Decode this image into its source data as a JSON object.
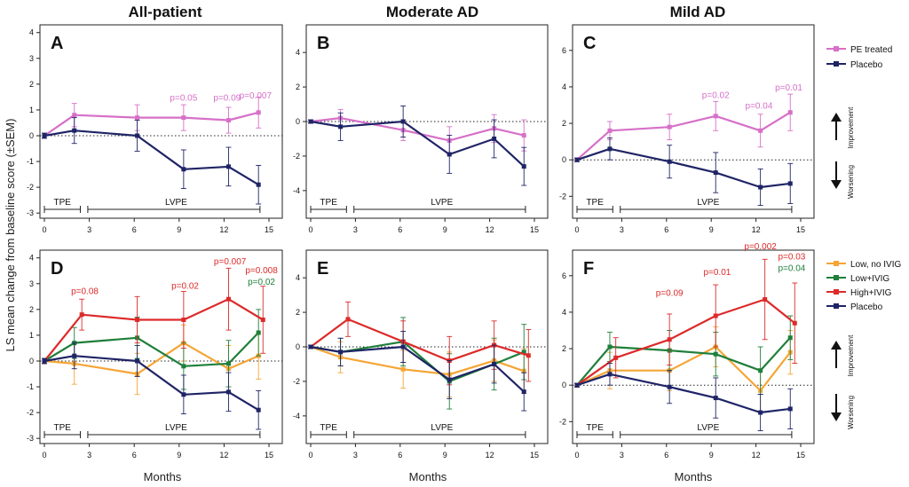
{
  "figure": {
    "column_titles": [
      "All-patient",
      "Moderate AD",
      "Mild AD"
    ],
    "ylabel": "LS mean change from baseline score (±SEM)",
    "xlabel": "Months",
    "periods": [
      "TPE",
      "LVPE"
    ],
    "improvement_label": "Improvement",
    "worsening_label": "Worsening"
  },
  "legends": {
    "top": [
      {
        "name": "PE treated",
        "color": "#d670c8"
      },
      {
        "name": "Placebo",
        "color": "#1f2466"
      }
    ],
    "bottom": [
      {
        "name": "Low, no IVIG",
        "color": "#f5a536"
      },
      {
        "name": "Low+IVIG",
        "color": "#1f7f3a"
      },
      {
        "name": "High+IVIG",
        "color": "#dd2a2a"
      },
      {
        "name": "Placebo",
        "color": "#1f2466"
      }
    ]
  },
  "chart_data": [
    {
      "panel": "A",
      "type": "line",
      "xticks": [
        "0",
        "3",
        "6",
        "9",
        "12",
        "15"
      ],
      "xlim": [
        0,
        15
      ],
      "yticks": [
        "-3",
        "-2",
        "-1",
        "0",
        "1",
        "2",
        "3",
        "4"
      ],
      "ylim": [
        -3.2,
        4.3
      ],
      "series": [
        {
          "name": "PE treated",
          "color": "#d670c8",
          "points": [
            [
              0,
              0,
              0.1
            ],
            [
              2,
              0.8,
              0.45
            ],
            [
              6.2,
              0.7,
              0.5
            ],
            [
              9.3,
              0.7,
              0.5
            ],
            [
              12.3,
              0.6,
              0.5
            ],
            [
              14.3,
              0.9,
              0.6
            ]
          ]
        },
        {
          "name": "Placebo",
          "color": "#1f2466",
          "points": [
            [
              0,
              0,
              0.1
            ],
            [
              2,
              0.2,
              0.5
            ],
            [
              6.2,
              0,
              0.6
            ],
            [
              9.3,
              -1.3,
              0.75
            ],
            [
              12.3,
              -1.2,
              0.75
            ],
            [
              14.3,
              -1.9,
              0.75
            ]
          ]
        }
      ],
      "annotations": [
        {
          "text": "p=0.05",
          "x": 9.3,
          "y": 1.35,
          "color": "#d670c8"
        },
        {
          "text": "p=0.09",
          "x": 12.2,
          "y": 1.35,
          "color": "#d670c8"
        },
        {
          "text": "p=0.007",
          "x": 14.1,
          "y": 1.45,
          "color": "#d670c8"
        }
      ]
    },
    {
      "panel": "B",
      "type": "line",
      "xticks": [
        "0",
        "3",
        "6",
        "9",
        "12",
        "15"
      ],
      "xlim": [
        0,
        15
      ],
      "yticks": [
        "-4",
        "-2",
        "0",
        "2",
        "4"
      ],
      "ylim": [
        -5.6,
        5.6
      ],
      "series": [
        {
          "name": "PE treated",
          "color": "#d670c8",
          "points": [
            [
              0,
              0,
              0.1
            ],
            [
              2,
              0.2,
              0.5
            ],
            [
              6.2,
              -0.5,
              0.6
            ],
            [
              9.3,
              -1.1,
              0.8
            ],
            [
              12.3,
              -0.4,
              0.8
            ],
            [
              14.3,
              -0.8,
              0.9
            ]
          ]
        },
        {
          "name": "Placebo",
          "color": "#1f2466",
          "points": [
            [
              0,
              0,
              0.1
            ],
            [
              2,
              -0.3,
              0.8
            ],
            [
              6.2,
              0,
              0.9
            ],
            [
              9.3,
              -1.9,
              1.1
            ],
            [
              12.3,
              -1,
              1.1
            ],
            [
              14.3,
              -2.6,
              1.1
            ]
          ]
        }
      ],
      "annotations": []
    },
    {
      "panel": "C",
      "type": "line",
      "xticks": [
        "0",
        "3",
        "6",
        "9",
        "12",
        "15"
      ],
      "xlim": [
        0,
        15
      ],
      "yticks": [
        "-2",
        "0",
        "2",
        "4",
        "6"
      ],
      "ylim": [
        -3.2,
        7.4
      ],
      "series": [
        {
          "name": "PE treated",
          "color": "#d670c8",
          "points": [
            [
              0,
              0,
              0.1
            ],
            [
              2.2,
              1.6,
              0.5
            ],
            [
              6.2,
              1.8,
              0.7
            ],
            [
              9.3,
              2.4,
              0.8
            ],
            [
              12.3,
              1.6,
              0.9
            ],
            [
              14.3,
              2.6,
              1
            ]
          ]
        },
        {
          "name": "Placebo",
          "color": "#1f2466",
          "points": [
            [
              0,
              0,
              0.1
            ],
            [
              2.2,
              0.6,
              0.6
            ],
            [
              6.2,
              -0.1,
              0.9
            ],
            [
              9.3,
              -0.7,
              1.1
            ],
            [
              12.3,
              -1.5,
              1
            ],
            [
              14.3,
              -1.3,
              1.1
            ]
          ]
        }
      ],
      "annotations": [
        {
          "text": "p=0.02",
          "x": 9.3,
          "y": 3.4,
          "color": "#d670c8"
        },
        {
          "text": "p=0.04",
          "x": 12.2,
          "y": 2.8,
          "color": "#d670c8"
        },
        {
          "text": "p=0.01",
          "x": 14.2,
          "y": 3.8,
          "color": "#d670c8"
        }
      ]
    },
    {
      "panel": "D",
      "type": "line",
      "xticks": [
        "0",
        "3",
        "6",
        "9",
        "12",
        "15"
      ],
      "xlim": [
        0,
        15
      ],
      "yticks": [
        "-3",
        "-2",
        "-1",
        "0",
        "1",
        "2",
        "3",
        "4"
      ],
      "ylim": [
        -3.2,
        4.3
      ],
      "series": [
        {
          "name": "Low, no IVIG",
          "color": "#f5a536",
          "points": [
            [
              0,
              0,
              0.1
            ],
            [
              2,
              -0.1,
              0.8
            ],
            [
              6.2,
              -0.5,
              0.8
            ],
            [
              9.3,
              0.7,
              0.7
            ],
            [
              12.3,
              -0.3,
              0.9
            ],
            [
              14.3,
              0.2,
              0.9
            ]
          ]
        },
        {
          "name": "Low+IVIG",
          "color": "#1f7f3a",
          "points": [
            [
              0,
              0,
              0.1
            ],
            [
              2,
              0.7,
              0.6
            ],
            [
              6.2,
              0.9,
              0.8
            ],
            [
              9.3,
              -0.2,
              0.9
            ],
            [
              12.3,
              -0.1,
              0.9
            ],
            [
              14.3,
              1.1,
              0.9
            ]
          ]
        },
        {
          "name": "High+IVIG",
          "color": "#dd2a2a",
          "points": [
            [
              0,
              0,
              0.1
            ],
            [
              2.5,
              1.8,
              0.6
            ],
            [
              6.2,
              1.6,
              0.9
            ],
            [
              9.3,
              1.6,
              1.1
            ],
            [
              12.3,
              2.4,
              1.2
            ],
            [
              14.6,
              1.6,
              1.3
            ]
          ]
        },
        {
          "name": "Placebo",
          "color": "#1f2466",
          "points": [
            [
              0,
              0,
              0.1
            ],
            [
              2,
              0.2,
              0.5
            ],
            [
              6.2,
              0,
              0.6
            ],
            [
              9.3,
              -1.3,
              0.75
            ],
            [
              12.3,
              -1.2,
              0.75
            ],
            [
              14.3,
              -1.9,
              0.75
            ]
          ]
        }
      ],
      "annotations": [
        {
          "text": "p=0.08",
          "x": 2.7,
          "y": 2.6,
          "color": "#dd2a2a"
        },
        {
          "text": "p=0.02",
          "x": 9.4,
          "y": 2.8,
          "color": "#dd2a2a"
        },
        {
          "text": "p=0.007",
          "x": 12.4,
          "y": 3.75,
          "color": "#dd2a2a"
        },
        {
          "text": "p=0.008",
          "x": 14.5,
          "y": 3.4,
          "color": "#dd2a2a"
        },
        {
          "text": "p=0.02",
          "x": 14.5,
          "y": 2.95,
          "color": "#1f7f3a"
        }
      ]
    },
    {
      "panel": "E",
      "type": "line",
      "xticks": [
        "0",
        "3",
        "6",
        "9",
        "12",
        "15"
      ],
      "xlim": [
        0,
        15
      ],
      "yticks": [
        "-4",
        "-2",
        "0",
        "2",
        "4"
      ],
      "ylim": [
        -5.6,
        5.6
      ],
      "series": [
        {
          "name": "Low, no IVIG",
          "color": "#f5a536",
          "points": [
            [
              0,
              0,
              0.1
            ],
            [
              2,
              -0.6,
              0.9
            ],
            [
              6.2,
              -1.3,
              1.1
            ],
            [
              9.3,
              -1.6,
              1.3
            ],
            [
              12.3,
              -0.8,
              1.2
            ],
            [
              14.3,
              -1.4,
              1.3
            ]
          ]
        },
        {
          "name": "Low+IVIG",
          "color": "#1f7f3a",
          "points": [
            [
              0,
              0,
              0.1
            ],
            [
              2,
              -0.3,
              0.8
            ],
            [
              6.2,
              0.3,
              1.4
            ],
            [
              9.3,
              -2,
              1.6
            ],
            [
              12.3,
              -1,
              1.5
            ],
            [
              14.3,
              -0.3,
              1.6
            ]
          ]
        },
        {
          "name": "High+IVIG",
          "color": "#dd2a2a",
          "points": [
            [
              0,
              0,
              0.1
            ],
            [
              2.5,
              1.6,
              1
            ],
            [
              6.2,
              0.3,
              1.2
            ],
            [
              9.3,
              -0.8,
              1.4
            ],
            [
              12.3,
              0.1,
              1.4
            ],
            [
              14.6,
              -0.5,
              1.5
            ]
          ]
        },
        {
          "name": "Placebo",
          "color": "#1f2466",
          "points": [
            [
              0,
              0,
              0.1
            ],
            [
              2,
              -0.3,
              0.8
            ],
            [
              6.2,
              0,
              0.9
            ],
            [
              9.3,
              -1.9,
              1.1
            ],
            [
              12.3,
              -1,
              1.1
            ],
            [
              14.3,
              -2.6,
              1.1
            ]
          ]
        }
      ],
      "annotations": []
    },
    {
      "panel": "F",
      "type": "line",
      "xticks": [
        "0",
        "3",
        "6",
        "9",
        "12",
        "15"
      ],
      "xlim": [
        0,
        15
      ],
      "yticks": [
        "-2",
        "0",
        "2",
        "4",
        "6"
      ],
      "ylim": [
        -3.2,
        7.4
      ],
      "series": [
        {
          "name": "Low, no IVIG",
          "color": "#f5a536",
          "points": [
            [
              0,
              0,
              0.1
            ],
            [
              2.2,
              0.8,
              1
            ],
            [
              6.2,
              0.8,
              1.1
            ],
            [
              9.3,
              2.1,
              1.1
            ],
            [
              12.3,
              -0.3,
              1.2
            ],
            [
              14.3,
              1.8,
              1.2
            ]
          ]
        },
        {
          "name": "Low+IVIG",
          "color": "#1f7f3a",
          "points": [
            [
              0,
              0,
              0.1
            ],
            [
              2.2,
              2.1,
              0.8
            ],
            [
              6.2,
              1.9,
              1.1
            ],
            [
              9.3,
              1.7,
              1.2
            ],
            [
              12.3,
              0.8,
              1.3
            ],
            [
              14.3,
              2.6,
              1.2
            ]
          ]
        },
        {
          "name": "High+IVIG",
          "color": "#dd2a2a",
          "points": [
            [
              0,
              0,
              0.1
            ],
            [
              2.6,
              1.5,
              1.1
            ],
            [
              6.2,
              2.5,
              1.4
            ],
            [
              9.3,
              3.8,
              1.7
            ],
            [
              12.6,
              4.7,
              2.2
            ],
            [
              14.6,
              3.4,
              2.2
            ]
          ]
        },
        {
          "name": "Placebo",
          "color": "#1f2466",
          "points": [
            [
              0,
              0,
              0.1
            ],
            [
              2.2,
              0.6,
              0.6
            ],
            [
              6.2,
              -0.1,
              0.9
            ],
            [
              9.3,
              -0.7,
              1.1
            ],
            [
              12.3,
              -1.5,
              1
            ],
            [
              14.3,
              -1.3,
              1.1
            ]
          ]
        }
      ],
      "annotations": [
        {
          "text": "p=0.09",
          "x": 6.2,
          "y": 4.9,
          "color": "#dd2a2a"
        },
        {
          "text": "p=0.01",
          "x": 9.4,
          "y": 6.05,
          "color": "#dd2a2a"
        },
        {
          "text": "p=0.002",
          "x": 12.3,
          "y": 7.45,
          "color": "#dd2a2a"
        },
        {
          "text": "p=0.03",
          "x": 14.4,
          "y": 6.9,
          "color": "#dd2a2a"
        },
        {
          "text": "p=0.04",
          "x": 14.4,
          "y": 6.25,
          "color": "#1f7f3a"
        }
      ]
    }
  ]
}
